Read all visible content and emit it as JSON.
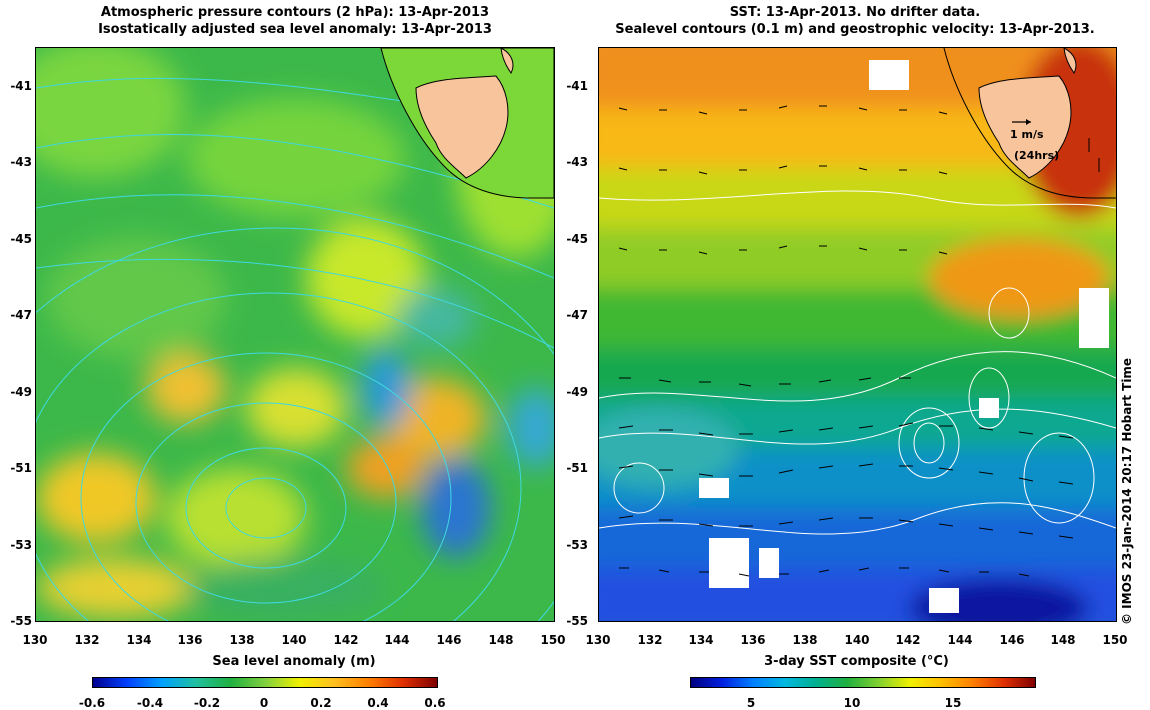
{
  "left_panel": {
    "title_line1": "Atmospheric pressure contours (2 hPa): 13-Apr-2013",
    "title_line2": "Isostatically adjusted sea level anomaly: 13-Apr-2013",
    "xlabel": "Sea level anomaly (m)",
    "colorbar_ticks": [
      "-0.6",
      "-0.4",
      "-0.2",
      "0",
      "0.2",
      "0.4",
      "0.6"
    ],
    "colorbar_range": [
      -0.6,
      0.6
    ]
  },
  "right_panel": {
    "title_line1": "SST: 13-Apr-2013. No drifter data.",
    "title_line2": "Sealevel contours (0.1 m) and geostrophic velocity: 13-Apr-2013.",
    "xlabel": "3-day SST composite (°C)",
    "colorbar_ticks": [
      "5",
      "10",
      "15"
    ],
    "colorbar_range": [
      2,
      19
    ],
    "scale_arrow_label": "1 m/s",
    "scale_arrow_sub": "(24hrs)"
  },
  "axes": {
    "lon_ticks": [
      "130",
      "132",
      "134",
      "136",
      "138",
      "140",
      "142",
      "144",
      "146",
      "148",
      "150"
    ],
    "lat_ticks": [
      "-41",
      "-43",
      "-45",
      "-47",
      "-49",
      "-51",
      "-53",
      "-55"
    ],
    "lon_range": [
      130,
      150
    ],
    "lat_range": [
      -55,
      -39.6
    ]
  },
  "credit": "© IMOS 23-Jan-2014 20:17 Hobart Time",
  "colors": {
    "land": "#f8c49c",
    "left_contours": "#40d8e0",
    "right_contours": "#ffffff",
    "vectors": "#000000"
  }
}
